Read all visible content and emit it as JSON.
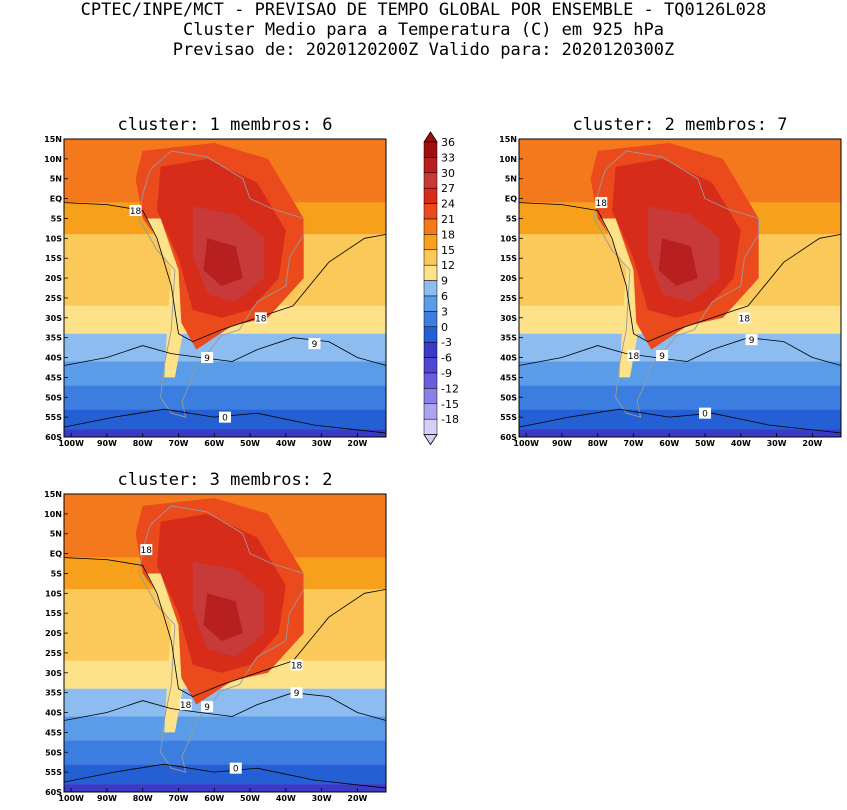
{
  "header": {
    "line1": "CPTEC/INPE/MCT - PREVISAO DE TEMPO GLOBAL POR ENSEMBLE - TQ0126L028",
    "line2": "Cluster Medio para a Temperatura (C) em 925 hPa",
    "line3": "Previsao de: 2020120200Z   Valido para: 2020120300Z"
  },
  "palette": {
    "36": "#a01010",
    "33": "#b82020",
    "30": "#c83a3a",
    "27": "#d82c1a",
    "24": "#ea4a1c",
    "21": "#f4781c",
    "18": "#f7a01c",
    "15": "#fbc85a",
    "12": "#fde28a",
    "9": "#8cbcf0",
    "6": "#5a9ce8",
    "3": "#3c7ee0",
    "0": "#2460d4",
    "-3": "#3a3ac8",
    "-6": "#5046d2",
    "-9": "#6c5ce0",
    "-12": "#8a80e8",
    "-15": "#aca4f0",
    "-18": "#d4d0f8"
  },
  "chart_data": [
    {
      "type": "contour-map",
      "title": "cluster: 1   membros: 6",
      "cluster": 1,
      "membros": 6,
      "xlim": [
        -102,
        -12
      ],
      "ylim": [
        -60,
        15
      ],
      "x_ticks": [
        "100W",
        "90W",
        "80W",
        "70W",
        "60W",
        "50W",
        "40W",
        "30W",
        "20W"
      ],
      "y_ticks": [
        "15N",
        "10N",
        "5N",
        "EQ",
        "5S",
        "10S",
        "15S",
        "20S",
        "25S",
        "30S",
        "35S",
        "40S",
        "45S",
        "50S",
        "55S",
        "60S"
      ],
      "contour_labels": [
        {
          "value": "18",
          "lon": -82,
          "lat": -3
        },
        {
          "value": "18",
          "lon": -47,
          "lat": -30
        },
        {
          "value": "9",
          "lon": -62,
          "lat": -40
        },
        {
          "value": "9",
          "lon": -32,
          "lat": -36.5
        },
        {
          "value": "0",
          "lon": -57,
          "lat": -55
        }
      ]
    },
    {
      "type": "contour-map",
      "title": "cluster: 2   membros: 7",
      "cluster": 2,
      "membros": 7,
      "xlim": [
        -102,
        -12
      ],
      "ylim": [
        -60,
        15
      ],
      "x_ticks": [
        "100W",
        "90W",
        "80W",
        "70W",
        "60W",
        "50W",
        "40W",
        "30W",
        "20W"
      ],
      "y_ticks": [
        "15N",
        "10N",
        "5N",
        "EQ",
        "5S",
        "10S",
        "15S",
        "20S",
        "25S",
        "30S",
        "35S",
        "40S",
        "45S",
        "50S",
        "55S",
        "60S"
      ],
      "contour_labels": [
        {
          "value": "18",
          "lon": -79,
          "lat": -1
        },
        {
          "value": "18",
          "lon": -39,
          "lat": -30
        },
        {
          "value": "18",
          "lon": -70,
          "lat": -39.5
        },
        {
          "value": "9",
          "lon": -62,
          "lat": -39.5
        },
        {
          "value": "9",
          "lon": -37,
          "lat": -35.5
        },
        {
          "value": "0",
          "lon": -50,
          "lat": -54
        }
      ]
    },
    {
      "type": "contour-map",
      "title": "cluster: 3   membros: 2",
      "cluster": 3,
      "membros": 2,
      "xlim": [
        -102,
        -12
      ],
      "ylim": [
        -60,
        15
      ],
      "x_ticks": [
        "100W",
        "90W",
        "80W",
        "70W",
        "60W",
        "50W",
        "40W",
        "30W",
        "20W"
      ],
      "y_ticks": [
        "15N",
        "10N",
        "5N",
        "EQ",
        "5S",
        "10S",
        "15S",
        "20S",
        "25S",
        "30S",
        "35S",
        "40S",
        "45S",
        "50S",
        "55S",
        "60S"
      ],
      "contour_labels": [
        {
          "value": "18",
          "lon": -79,
          "lat": 1
        },
        {
          "value": "18",
          "lon": -37,
          "lat": -28
        },
        {
          "value": "18",
          "lon": -68,
          "lat": -38
        },
        {
          "value": "9",
          "lon": -62,
          "lat": -38.5
        },
        {
          "value": "9",
          "lon": -37,
          "lat": -35
        },
        {
          "value": "0",
          "lon": -54,
          "lat": -54
        }
      ]
    }
  ],
  "colorbar": {
    "labels": [
      "36",
      "33",
      "30",
      "27",
      "24",
      "21",
      "18",
      "15",
      "12",
      "9",
      "6",
      "3",
      "0",
      "-3",
      "-6",
      "-9",
      "-12",
      "-15",
      "-18"
    ]
  }
}
